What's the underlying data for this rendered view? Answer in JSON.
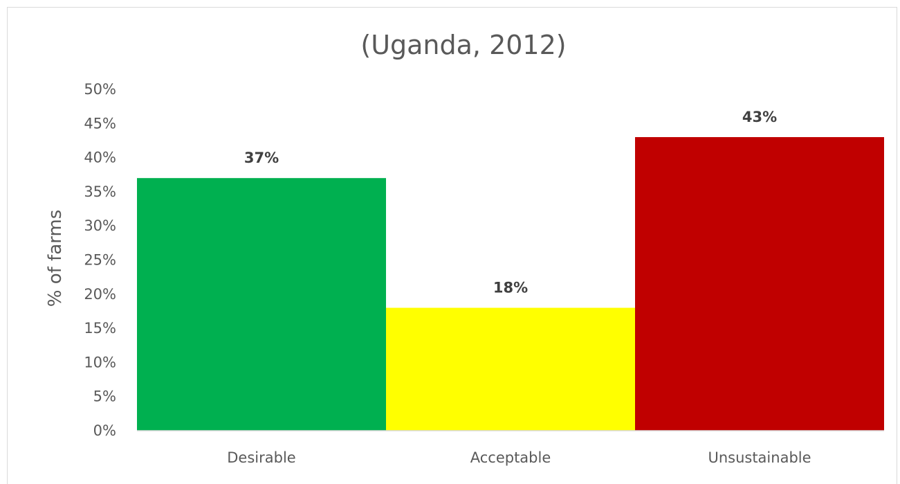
{
  "chart_data": {
    "type": "bar",
    "title": "(Uganda, 2012)",
    "xlabel": "",
    "ylabel": "% of farms",
    "categories": [
      "Desirable",
      "Acceptable",
      "Unsustainable"
    ],
    "values": [
      37,
      18,
      43
    ],
    "data_labels": [
      "37%",
      "18%",
      "43%"
    ],
    "bar_colors": [
      "#00b050",
      "#ffff00",
      "#c00000"
    ],
    "ylim": [
      0,
      50
    ],
    "yticks": [
      0,
      5,
      10,
      15,
      20,
      25,
      30,
      35,
      40,
      45,
      50
    ],
    "ytick_labels": [
      "0%",
      "5%",
      "10%",
      "15%",
      "20%",
      "25%",
      "30%",
      "35%",
      "40%",
      "45%",
      "50%"
    ],
    "grid": false,
    "legend": "none"
  }
}
